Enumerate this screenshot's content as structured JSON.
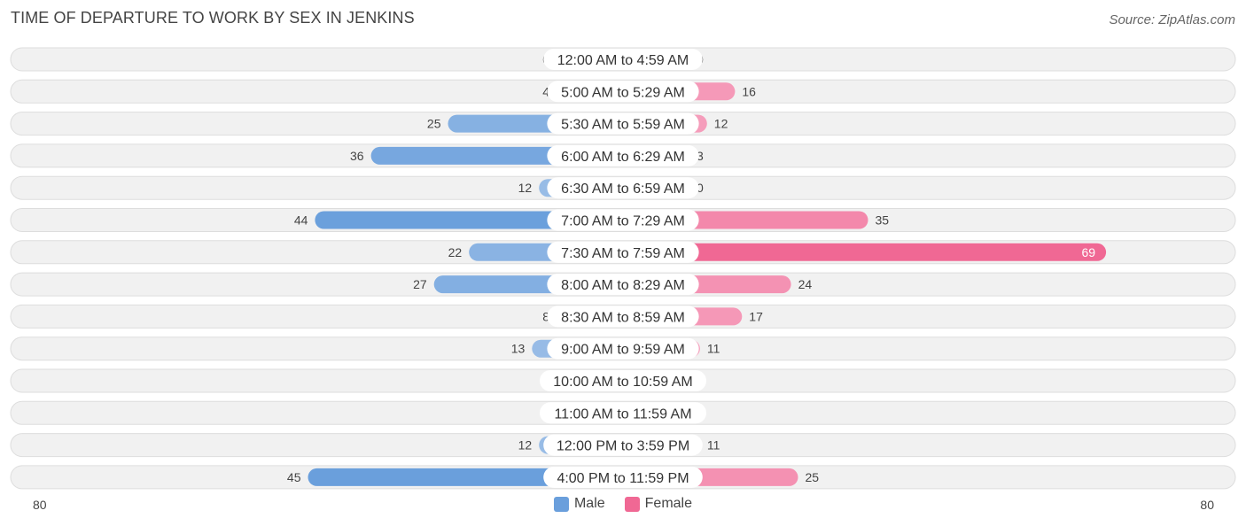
{
  "header": {
    "title": "TIME OF DEPARTURE TO WORK BY SEX IN JENKINS",
    "source": "Source: ZipAtlas.com"
  },
  "axis": {
    "left_label": "80",
    "right_label": "80"
  },
  "legend": {
    "male_label": "Male",
    "female_label": "Female"
  },
  "colors": {
    "male_light": "#a9c7ea",
    "male_dark": "#6a9fdc",
    "female_light": "#f6a8c3",
    "female_dark": "#f06894"
  },
  "chart_data": {
    "type": "bar",
    "orientation": "horizontal-diverging",
    "title": "TIME OF DEPARTURE TO WORK BY SEX IN JENKINS",
    "categories": [
      "12:00 AM to 4:59 AM",
      "5:00 AM to 5:29 AM",
      "5:30 AM to 5:59 AM",
      "6:00 AM to 6:29 AM",
      "6:30 AM to 6:59 AM",
      "7:00 AM to 7:29 AM",
      "7:30 AM to 7:59 AM",
      "8:00 AM to 8:29 AM",
      "8:30 AM to 8:59 AM",
      "9:00 AM to 9:59 AM",
      "10:00 AM to 10:59 AM",
      "11:00 AM to 11:59 AM",
      "12:00 PM to 3:59 PM",
      "4:00 PM to 11:59 PM"
    ],
    "series": [
      {
        "name": "Male",
        "values": [
          0,
          4,
          25,
          36,
          12,
          44,
          22,
          27,
          8,
          13,
          0,
          0,
          12,
          45
        ]
      },
      {
        "name": "Female",
        "values": [
          0,
          16,
          12,
          3,
          0,
          35,
          69,
          24,
          17,
          11,
          0,
          0,
          11,
          25
        ]
      }
    ],
    "xlim": [
      -80,
      80
    ],
    "legend_position": "bottom-center",
    "grid": false
  }
}
